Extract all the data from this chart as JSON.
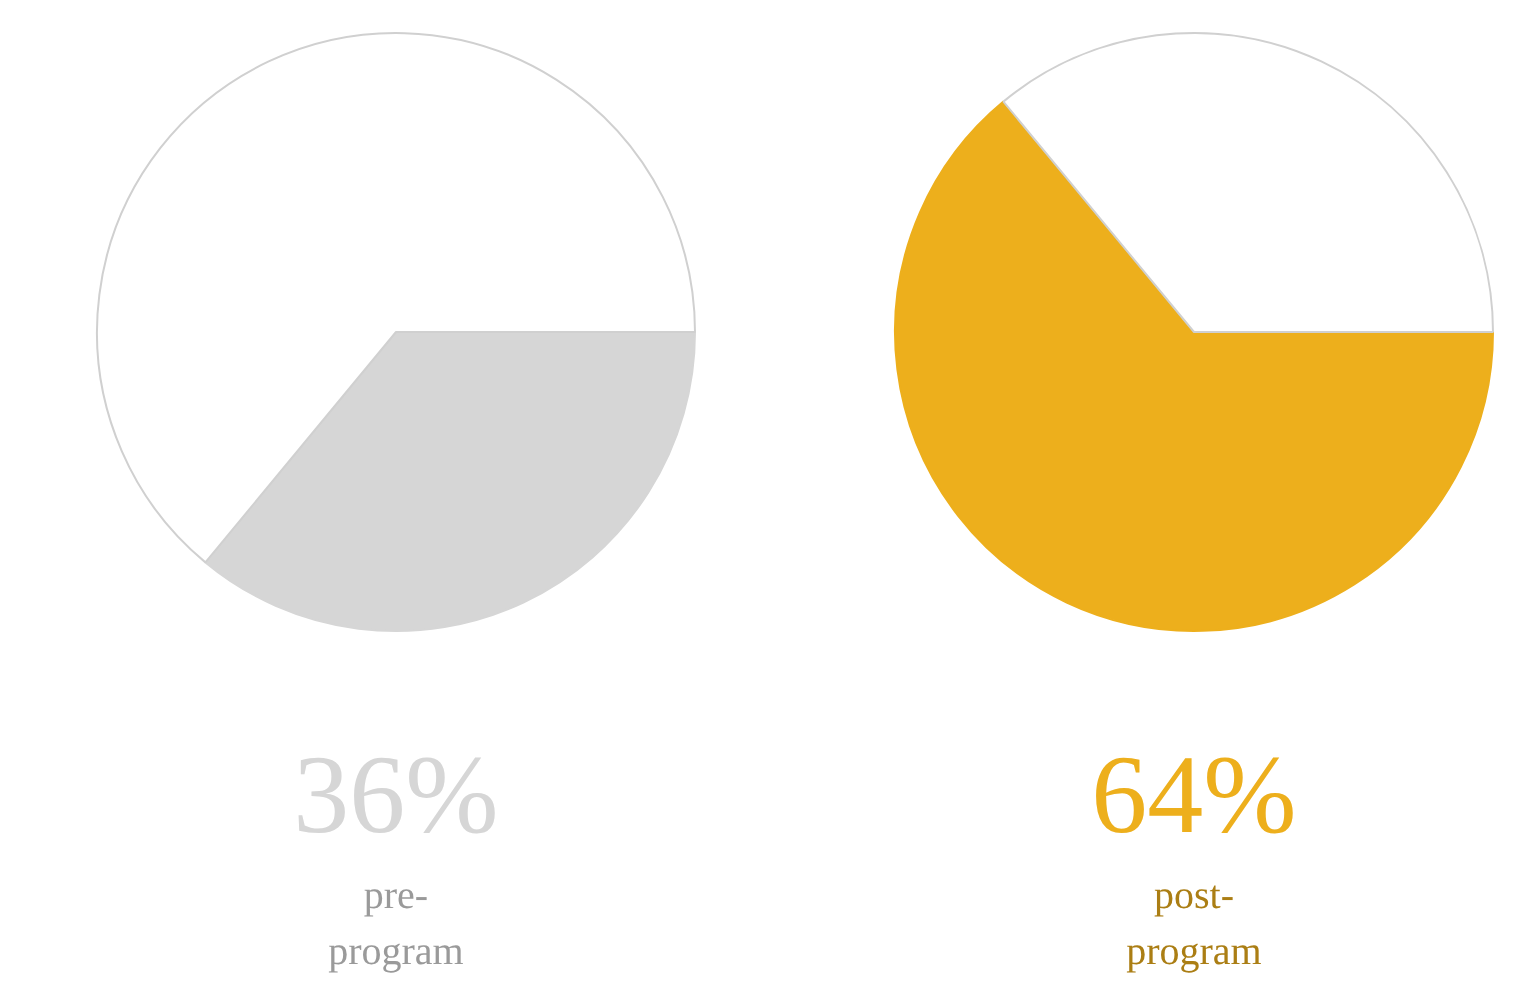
{
  "chart_data": [
    {
      "type": "pie",
      "categories": [
        "pre-program",
        null
      ],
      "values": [
        36,
        64
      ],
      "colors": [
        "#d6d6d6",
        "#ffffff"
      ],
      "value_labels": [
        "36%",
        null
      ],
      "legend": false
    },
    {
      "type": "pie",
      "categories": [
        "post-program",
        null
      ],
      "values": [
        64,
        36
      ],
      "colors": [
        "#edaf1c",
        "#ffffff"
      ],
      "value_labels": [
        "64%",
        null
      ],
      "legend": false
    }
  ]
}
